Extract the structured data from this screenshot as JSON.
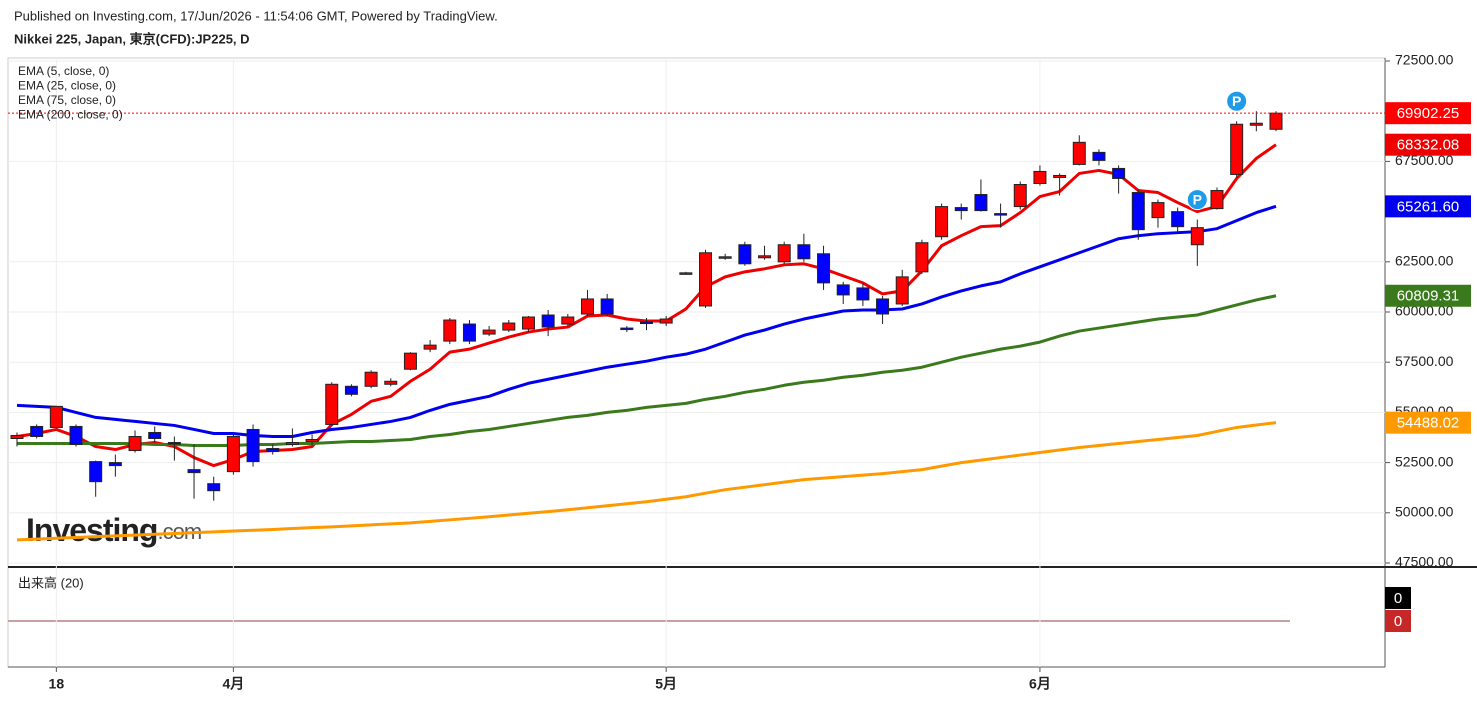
{
  "header": {
    "published": "Published on Investing.com, 17/Jun/2026 - 11:54:06 GMT, Powered by TradingView.",
    "symbol": "Nikkei 225, Japan, 東京(CFD):JP225, D"
  },
  "chart_data": {
    "type": "candlestick",
    "categories": [
      null,
      null,
      "18",
      null,
      null,
      null,
      null,
      null,
      null,
      null,
      null,
      "4月",
      null,
      null,
      null,
      null,
      null,
      null,
      null,
      null,
      null,
      null,
      null,
      null,
      null,
      null,
      null,
      null,
      null,
      null,
      null,
      null,
      null,
      "5月",
      null,
      null,
      null,
      null,
      null,
      null,
      null,
      null,
      null,
      null,
      null,
      null,
      null,
      null,
      null,
      null,
      null,
      null,
      "6月",
      null,
      null,
      null,
      null,
      null,
      null,
      null,
      null,
      null,
      null,
      null,
      null
    ],
    "open": [
      53700,
      54300,
      54250,
      54300,
      52550,
      52500,
      53100,
      54000,
      53500,
      52150,
      51450,
      52050,
      54150,
      53200,
      53400,
      53550,
      54400,
      56300,
      56300,
      56400,
      57150,
      58150,
      58550,
      59400,
      58900,
      59100,
      59150,
      59850,
      59400,
      59900,
      60650,
      59200,
      59500,
      59450,
      61900,
      60300,
      62700,
      63350,
      62700,
      62500,
      63350,
      62900,
      61350,
      61200,
      60650,
      60400,
      62000,
      63750,
      65200,
      65850,
      64900,
      65250,
      66400,
      66700,
      67350,
      67950,
      67150,
      65950,
      64700,
      65000,
      63350,
      65150,
      66850,
      69300,
      69100
    ],
    "high": [
      54000,
      54400,
      55300,
      54400,
      52600,
      52900,
      54100,
      54300,
      53800,
      53400,
      51800,
      54000,
      54400,
      53400,
      54200,
      53900,
      56500,
      56400,
      57100,
      56700,
      58000,
      58600,
      59700,
      59600,
      59300,
      59600,
      59800,
      60100,
      59900,
      61100,
      60900,
      59300,
      59700,
      59800,
      62000,
      63100,
      62900,
      63500,
      63300,
      63500,
      63900,
      63300,
      61500,
      61400,
      60800,
      62100,
      63600,
      65400,
      65400,
      66600,
      65400,
      66500,
      67300,
      66900,
      68800,
      68100,
      67300,
      66100,
      65600,
      65200,
      64600,
      66200,
      69500,
      70000,
      70000
    ],
    "low": [
      53300,
      53700,
      54200,
      53300,
      50800,
      51800,
      53000,
      53500,
      52600,
      50700,
      50600,
      51900,
      52300,
      52900,
      53300,
      53400,
      54300,
      55800,
      56200,
      56300,
      57100,
      58000,
      58400,
      58400,
      58800,
      59000,
      59000,
      58800,
      59300,
      59800,
      59800,
      59000,
      59100,
      59300,
      61850,
      60200,
      62600,
      62300,
      62600,
      62400,
      62500,
      61100,
      60400,
      60300,
      59400,
      60300,
      61900,
      63600,
      64600,
      65000,
      64200,
      65100,
      66300,
      65800,
      67300,
      67300,
      65900,
      63600,
      64200,
      64000,
      62300,
      65100,
      66700,
      69000,
      69000
    ],
    "close": [
      53850,
      53800,
      55300,
      53400,
      51550,
      52350,
      53800,
      53700,
      53450,
      52000,
      51100,
      53800,
      52550,
      53050,
      53500,
      53650,
      56400,
      55900,
      57000,
      56550,
      57950,
      58350,
      59600,
      58550,
      59100,
      59450,
      59750,
      59250,
      59750,
      60650,
      59900,
      59150,
      59450,
      59650,
      61950,
      62950,
      62750,
      62400,
      62800,
      63350,
      62650,
      61450,
      60850,
      60600,
      59900,
      61750,
      63450,
      65250,
      65050,
      65050,
      64850,
      66350,
      67000,
      66800,
      68450,
      67550,
      66650,
      64100,
      65450,
      64250,
      64200,
      66050,
      69350,
      69400,
      69902.25
    ],
    "color_up": "#ff0000",
    "color_down": "#0000ff",
    "last_label": "69902.25",
    "series": [
      {
        "name": "EMA (5, close, 0)",
        "color": "#ee0000",
        "last_label": "68332.08",
        "values": [
          53800,
          53950,
          54150,
          53800,
          53300,
          53150,
          53400,
          53500,
          53300,
          52750,
          52350,
          52650,
          53050,
          53100,
          53150,
          53300,
          54400,
          54900,
          55550,
          55800,
          56550,
          57150,
          58000,
          58150,
          58450,
          58750,
          59000,
          59150,
          59250,
          59800,
          59850,
          59650,
          59550,
          59550,
          60150,
          61250,
          61750,
          62000,
          62150,
          62350,
          62400,
          62150,
          61800,
          61450,
          60900,
          61050,
          62050,
          63300,
          63800,
          64250,
          64300,
          64950,
          65750,
          66000,
          66900,
          67050,
          66850,
          66050,
          65950,
          65450,
          65000,
          65250,
          66650,
          67650,
          68332.08
        ]
      },
      {
        "name": "EMA (25, close, 0)",
        "color": "#0000ee",
        "last_label": "65261.60",
        "values": [
          55350,
          55300,
          55250,
          55000,
          54750,
          54650,
          54550,
          54450,
          54350,
          54150,
          53950,
          53950,
          53850,
          53800,
          53800,
          54000,
          54150,
          54250,
          54400,
          54550,
          54750,
          55100,
          55400,
          55600,
          55800,
          56150,
          56450,
          56650,
          56850,
          57050,
          57250,
          57400,
          57550,
          57750,
          57900,
          58150,
          58500,
          58850,
          59100,
          59400,
          59650,
          59850,
          60050,
          60100,
          60100,
          60150,
          60400,
          60750,
          61050,
          61300,
          61500,
          61900,
          62250,
          62600,
          62950,
          63300,
          63650,
          63800,
          63900,
          63950,
          64000,
          64150,
          64550,
          64950,
          65261.6
        ]
      },
      {
        "name": "EMA (75, close, 0)",
        "color": "#3a7a1c",
        "last_label": "60809.31",
        "values": [
          53450,
          53450,
          53450,
          53450,
          53450,
          53450,
          53450,
          53400,
          53400,
          53350,
          53350,
          53350,
          53400,
          53400,
          53450,
          53450,
          53500,
          53550,
          53550,
          53600,
          53650,
          53800,
          53900,
          54050,
          54150,
          54300,
          54450,
          54600,
          54750,
          54850,
          55000,
          55100,
          55250,
          55350,
          55450,
          55650,
          55800,
          56000,
          56150,
          56350,
          56500,
          56600,
          56750,
          56850,
          57000,
          57100,
          57250,
          57500,
          57750,
          57950,
          58150,
          58300,
          58500,
          58800,
          59050,
          59200,
          59350,
          59500,
          59650,
          59750,
          59850,
          60100,
          60350,
          60600,
          60809.31
        ]
      },
      {
        "name": "EMA (200, close, 0)",
        "color": "#ff9900",
        "last_label": "54488.02",
        "values": [
          48650,
          48690,
          48730,
          48770,
          48810,
          48850,
          48890,
          48930,
          48970,
          49010,
          49050,
          49090,
          49130,
          49170,
          49220,
          49260,
          49300,
          49350,
          49400,
          49450,
          49500,
          49575,
          49650,
          49725,
          49800,
          49890,
          49975,
          50060,
          50150,
          50250,
          50350,
          50450,
          50550,
          50675,
          50800,
          50975,
          51150,
          51275,
          51400,
          51525,
          51650,
          51725,
          51800,
          51875,
          51950,
          52050,
          52150,
          52325,
          52500,
          52625,
          52750,
          52875,
          53000,
          53125,
          53250,
          53350,
          53450,
          53550,
          53650,
          53750,
          53850,
          54050,
          54250,
          54370,
          54488.02
        ]
      }
    ],
    "ylim": [
      47300,
      72650
    ],
    "yticks": [
      {
        "value": 47500,
        "label": "47500.00"
      },
      {
        "value": 50000,
        "label": "50000.00"
      },
      {
        "value": 52500,
        "label": "52500.00"
      },
      {
        "value": 55000,
        "label": "55000.00"
      },
      {
        "value": 57500,
        "label": "57500.00"
      },
      {
        "value": 60000,
        "label": "60000.00"
      },
      {
        "value": 62500,
        "label": "62500.00"
      },
      {
        "value": 67500,
        "label": "67500.00"
      },
      {
        "value": 72500,
        "label": "72500.00"
      }
    ],
    "grid": true,
    "markers": [
      {
        "index": 60,
        "label": "P"
      },
      {
        "index": 62,
        "label": "P"
      }
    ],
    "logo": {
      "name": "Investing",
      "suffix": ".com"
    },
    "volume": {
      "title": "出来高 (20)",
      "labels": [
        0,
        0
      ]
    }
  }
}
